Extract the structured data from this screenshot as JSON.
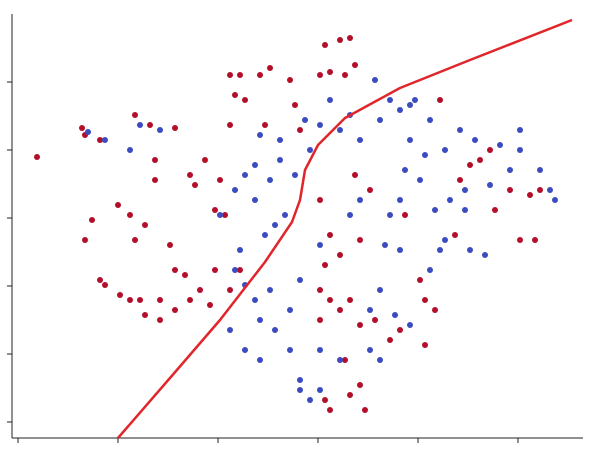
{
  "chart_data": {
    "type": "scatter",
    "xlim": [
      12,
      583
    ],
    "ylim": [
      0,
      424
    ],
    "xticks": [
      18,
      118,
      218,
      318,
      418,
      518
    ],
    "yticks": [
      16,
      84,
      152,
      220,
      288,
      356
    ],
    "series": [
      {
        "color": "#b40f2a",
        "x": [
          37,
          82,
          85,
          100,
          92,
          85,
          118,
          130,
          135,
          145,
          155,
          155,
          100,
          105,
          120,
          130,
          145,
          160,
          175,
          190,
          210,
          230,
          240,
          230,
          240,
          260,
          270,
          290,
          235,
          245,
          230,
          265,
          295,
          300,
          325,
          340,
          350,
          320,
          330,
          345,
          355,
          135,
          150,
          175,
          190,
          195,
          205,
          220,
          215,
          225,
          170,
          175,
          185,
          200,
          215,
          140,
          160,
          330,
          340,
          325,
          360,
          355,
          370,
          320,
          320,
          330,
          340,
          350,
          320,
          360,
          375,
          390,
          400,
          425,
          435,
          425,
          345,
          360,
          350,
          365,
          330,
          325,
          440,
          470,
          480,
          490,
          495,
          510,
          520,
          530,
          540,
          535,
          405,
          420,
          455,
          460
        ],
        "y": [
          281,
          310,
          303,
          298,
          218,
          198,
          233,
          223,
          198,
          213,
          278,
          258,
          158,
          153,
          143,
          138,
          123,
          118,
          128,
          138,
          133,
          148,
          168,
          363,
          363,
          363,
          370,
          358,
          343,
          338,
          313,
          313,
          333,
          308,
          393,
          398,
          400,
          363,
          366,
          363,
          373,
          323,
          313,
          310,
          263,
          253,
          278,
          258,
          228,
          223,
          193,
          168,
          163,
          148,
          168,
          138,
          138,
          203,
          183,
          173,
          198,
          263,
          248,
          238,
          148,
          138,
          128,
          138,
          118,
          113,
          118,
          98,
          108,
          138,
          128,
          93,
          78,
          53,
          43,
          28,
          28,
          38,
          338,
          273,
          278,
          288,
          228,
          248,
          198,
          243,
          248,
          198,
          223,
          158,
          203,
          258
        ]
      },
      {
        "color": "#3a4cc0",
        "x": [
          88,
          105,
          130,
          140,
          160,
          220,
          235,
          245,
          255,
          270,
          280,
          295,
          255,
          265,
          275,
          285,
          240,
          235,
          245,
          255,
          260,
          230,
          245,
          260,
          275,
          290,
          300,
          320,
          340,
          370,
          380,
          300,
          310,
          320,
          290,
          300,
          270,
          320,
          350,
          360,
          385,
          390,
          400,
          405,
          420,
          435,
          450,
          465,
          470,
          485,
          440,
          445,
          400,
          430,
          380,
          370,
          395,
          410,
          360,
          380,
          400,
          410,
          430,
          445,
          460,
          475,
          500,
          510,
          520,
          540,
          550,
          555,
          520,
          490,
          340,
          330,
          350,
          375,
          390,
          305,
          320,
          310,
          280,
          260,
          465,
          425,
          410,
          415
        ],
        "y": [
          306,
          298,
          288,
          313,
          308,
          223,
          248,
          263,
          273,
          258,
          278,
          263,
          238,
          203,
          213,
          223,
          188,
          168,
          153,
          138,
          118,
          108,
          88,
          78,
          108,
          88,
          58,
          88,
          78,
          88,
          78,
          48,
          38,
          48,
          128,
          158,
          148,
          193,
          223,
          238,
          193,
          223,
          238,
          268,
          258,
          228,
          238,
          228,
          188,
          183,
          188,
          198,
          188,
          168,
          148,
          128,
          123,
          113,
          298,
          318,
          328,
          298,
          318,
          288,
          308,
          298,
          293,
          268,
          308,
          268,
          248,
          238,
          288,
          253,
          308,
          338,
          323,
          358,
          338,
          318,
          313,
          288,
          298,
          303,
          248,
          283,
          333,
          338
        ]
      },
      {
        "type": "line",
        "color": "#e0262a",
        "x": [
          118,
          170,
          220,
          265,
          292,
          300,
          305,
          318,
          345,
          400,
          470,
          572
        ],
        "y": [
          0,
          60,
          118,
          176,
          216,
          238,
          268,
          293,
          320,
          350,
          378,
          418
        ]
      }
    ]
  }
}
